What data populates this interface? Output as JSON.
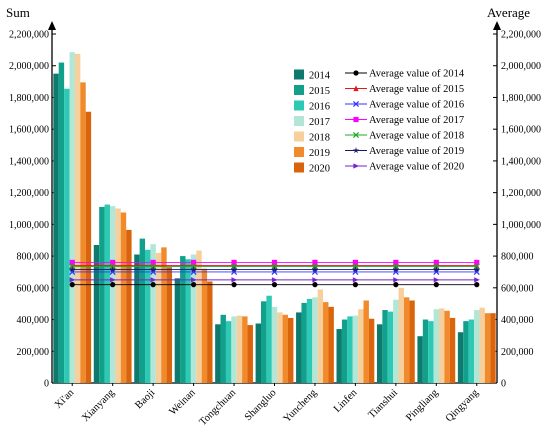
{
  "chart_data": {
    "type": "bar",
    "ylabel_left": "Sum",
    "ylabel_right": "Average",
    "ylim": [
      0,
      2200000
    ],
    "yticks": [
      "0",
      "200,000",
      "400,000",
      "600,000",
      "800,000",
      "1,000,000",
      "1,200,000",
      "1,400,000",
      "1,600,000",
      "1,800,000",
      "2,000,000",
      "2,200,000"
    ],
    "categories": [
      "Xi'an",
      "Xianyang",
      "Baoji",
      "Weinan",
      "Tongchuan",
      "Shangluo",
      "Yuncheng",
      "Linfen",
      "Tianshui",
      "Pingliang",
      "Qingyang"
    ],
    "series": [
      {
        "name": "2014",
        "color": "#0d7a6d",
        "values": [
          1950000,
          870000,
          810000,
          660000,
          370000,
          375000,
          445000,
          340000,
          370000,
          295000,
          320000
        ]
      },
      {
        "name": "2015",
        "color": "#11a08c",
        "values": [
          2020000,
          1110000,
          910000,
          800000,
          430000,
          515000,
          505000,
          400000,
          460000,
          400000,
          390000
        ]
      },
      {
        "name": "2016",
        "color": "#2ec9b4",
        "values": [
          1855000,
          1125000,
          840000,
          780000,
          390000,
          550000,
          530000,
          420000,
          450000,
          390000,
          400000
        ]
      },
      {
        "name": "2017",
        "color": "#b2e6d6",
        "values": [
          2085000,
          1115000,
          875000,
          810000,
          420000,
          480000,
          540000,
          425000,
          525000,
          465000,
          460000
        ]
      },
      {
        "name": "2018",
        "color": "#f6cf9c",
        "values": [
          2075000,
          1100000,
          820000,
          835000,
          425000,
          445000,
          590000,
          465000,
          600000,
          470000,
          475000
        ]
      },
      {
        "name": "2019",
        "color": "#f08a2b",
        "values": [
          1895000,
          1075000,
          855000,
          720000,
          420000,
          430000,
          510000,
          520000,
          540000,
          455000,
          440000
        ]
      },
      {
        "name": "2020",
        "color": "#d9640c",
        "values": [
          1710000,
          965000,
          730000,
          640000,
          365000,
          410000,
          480000,
          405000,
          520000,
          410000,
          440000
        ]
      }
    ],
    "averages": [
      {
        "name": "Average value of 2014",
        "value": 620000,
        "color": "#000000",
        "marker": "circle"
      },
      {
        "name": "Average value of 2015",
        "value": 740000,
        "color": "#e8151b",
        "marker": "triangle"
      },
      {
        "name": "Average value of 2016",
        "value": 700000,
        "color": "#3333ff",
        "marker": "x"
      },
      {
        "name": "Average value of 2017",
        "value": 760000,
        "color": "#ff00ff",
        "marker": "square"
      },
      {
        "name": "Average value of 2018",
        "value": 735000,
        "color": "#21a821",
        "marker": "x"
      },
      {
        "name": "Average value of 2019",
        "value": 715000,
        "color": "#1a1a66",
        "marker": "star"
      },
      {
        "name": "Average value of 2020",
        "value": 650000,
        "color": "#7a22cc",
        "marker": "triangle-right"
      }
    ],
    "legend_position": "top-right",
    "grid": false
  }
}
